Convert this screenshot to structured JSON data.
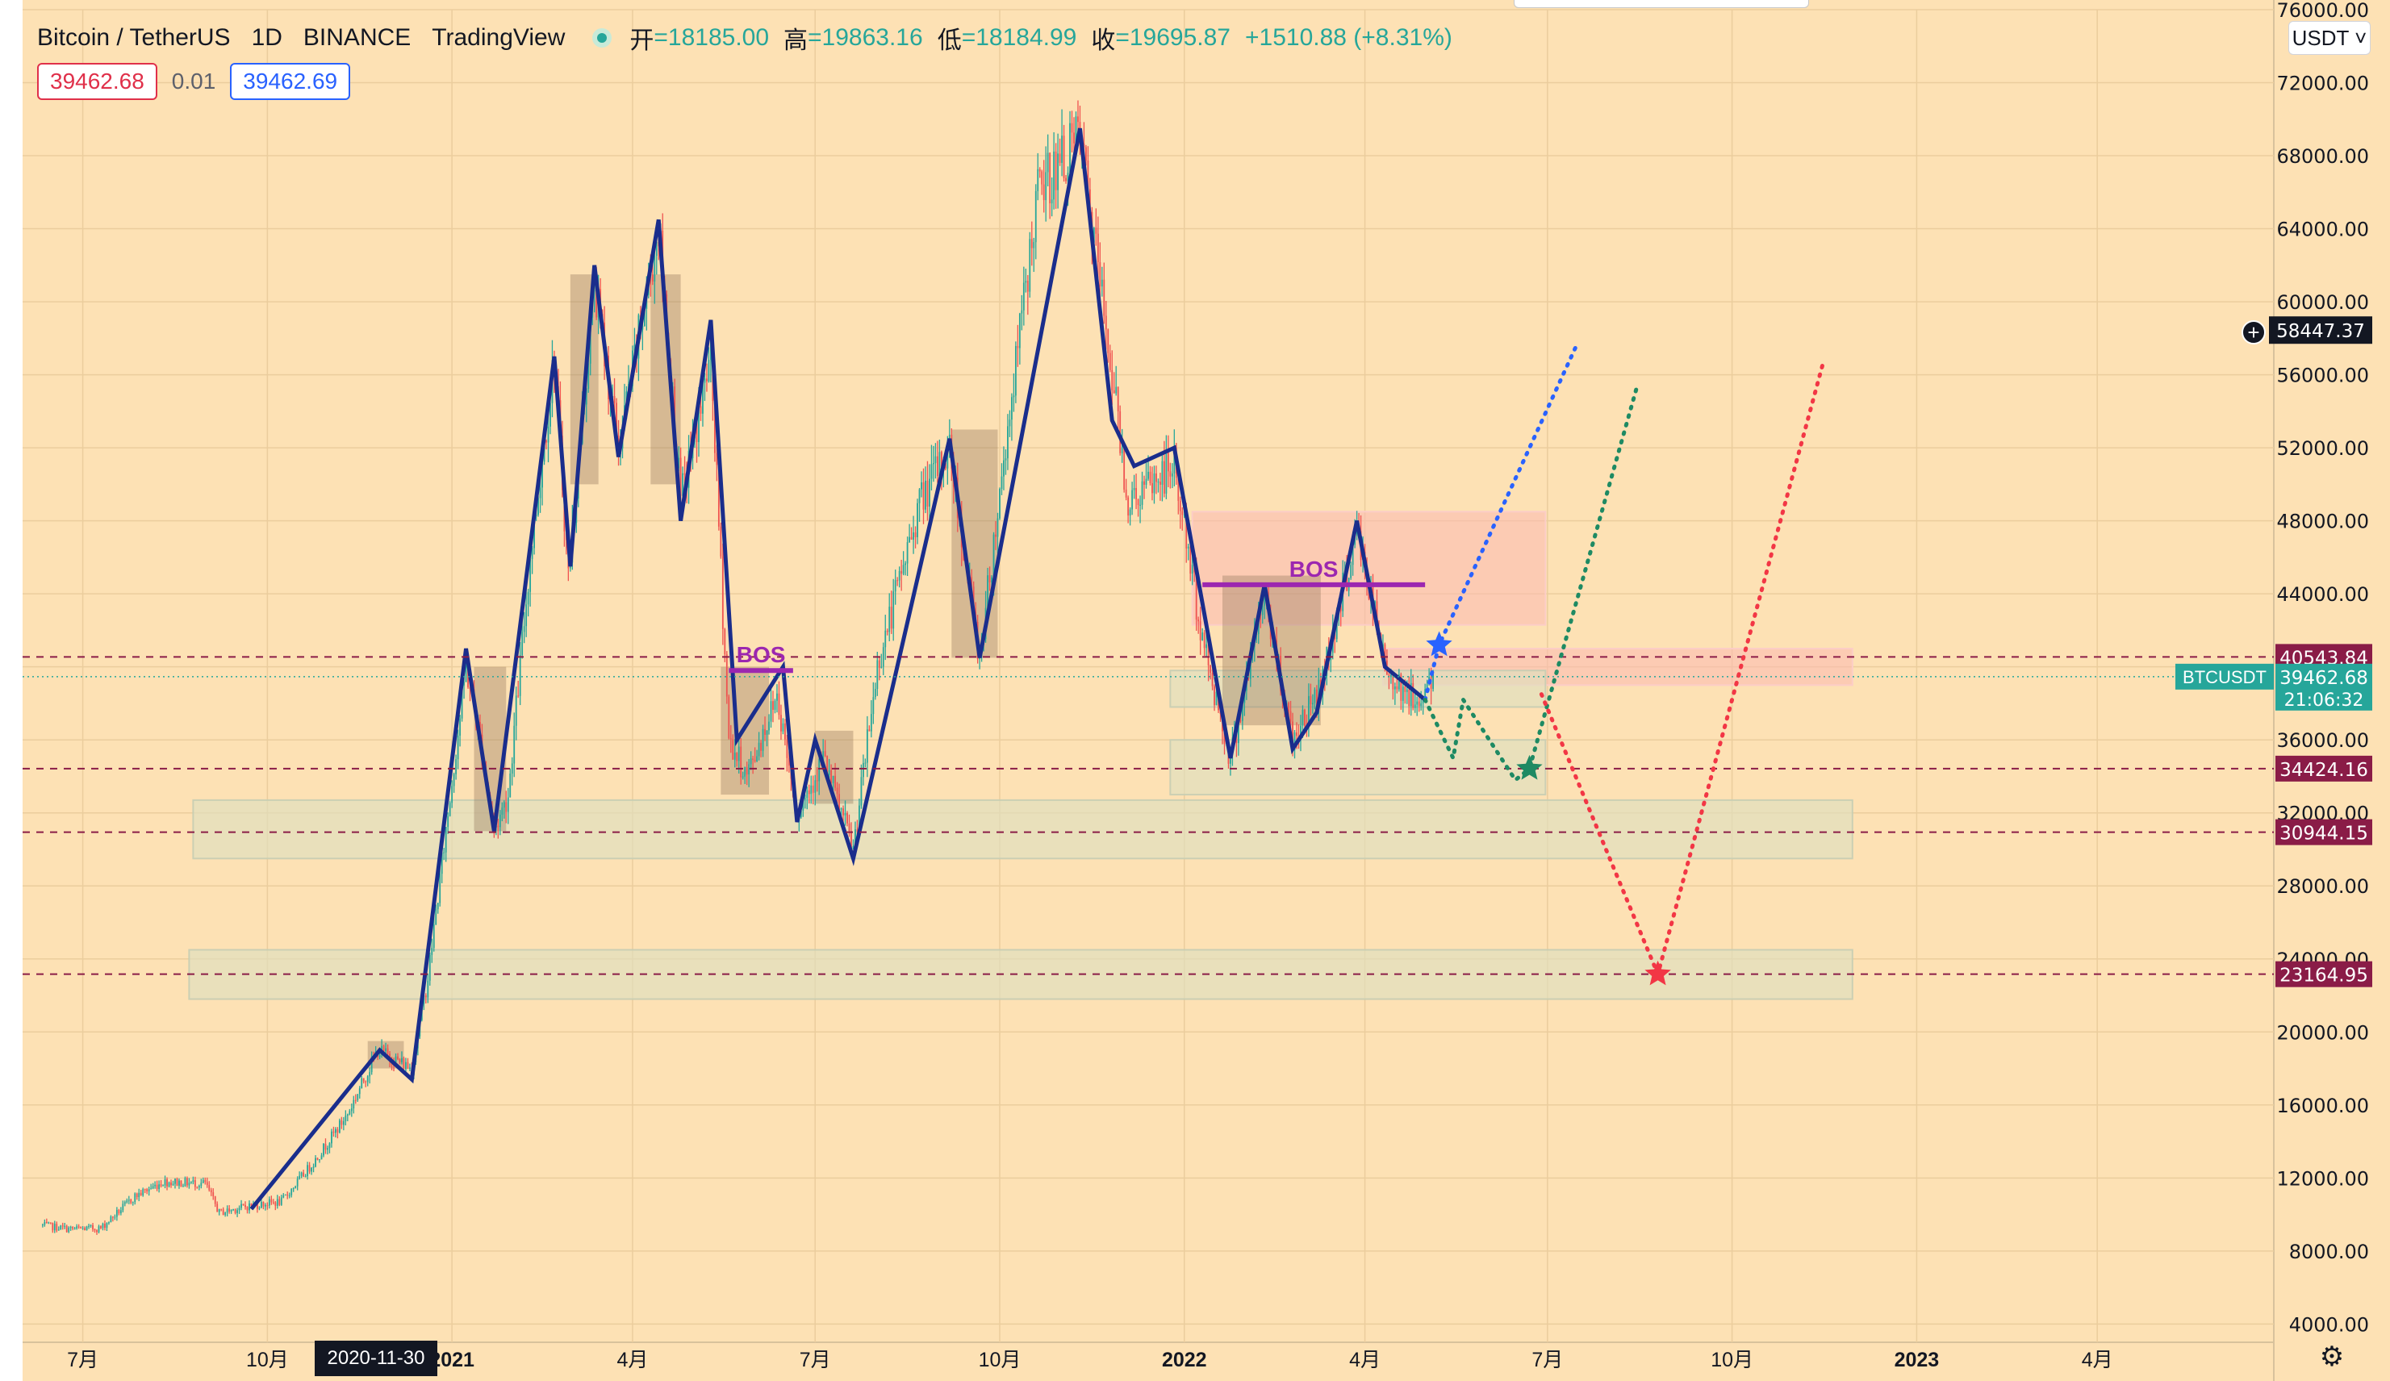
{
  "header": {
    "symbol": "Bitcoin / TetherUS",
    "interval": "1D",
    "exchange": "BINANCE",
    "platform": "TradingView",
    "ohlc": [
      {
        "key": "开",
        "value": "=18185.00"
      },
      {
        "key": "高",
        "value": "=19863.16"
      },
      {
        "key": "低",
        "value": "=18184.99"
      },
      {
        "key": "收",
        "value": "=19695.87"
      }
    ],
    "change": "+1510.88 (+8.31%)"
  },
  "trade": {
    "sell": "39462.68",
    "spread": "0.01",
    "buy": "39462.69"
  },
  "currency_label": "USDT ˅",
  "crosshair_label": "58447.37",
  "hover_date": "2020-11-30",
  "icons": {
    "settings": "gear-icon",
    "add": "plus-circle-icon"
  },
  "colors": {
    "background": "#fde1b4",
    "candle_up": "#26a69a",
    "candle_down": "#ef5350",
    "swing_line": "#1a2d8c",
    "bos": "#9c27b0",
    "level": "#8a1c47",
    "path_blue": "#2962ff",
    "path_green": "#1e8a63",
    "path_red": "#f23645"
  },
  "chart_data": {
    "type": "candlestick",
    "symbol": "BTCUSDT",
    "x_range": [
      "2020-06-11",
      "2023-06-30"
    ],
    "ylim": [
      3000,
      76000
    ],
    "y_ticks": [
      4000,
      8000,
      12000,
      16000,
      20000,
      24000,
      28000,
      32000,
      36000,
      40000,
      44000,
      48000,
      52000,
      56000,
      60000,
      64000,
      68000,
      72000,
      76000
    ],
    "y_tick_labels": [
      "4000.00",
      "8000.00",
      "12000.00",
      "16000.00",
      "20000.00",
      "24000.00",
      "28000.00",
      "32000.00",
      "36000.00",
      "40000.00",
      "44000.00",
      "48000.00",
      "52000.00",
      "56000.00",
      "60000.00",
      "64000.00",
      "68000.00",
      "72000.00",
      "76000.00"
    ],
    "x_ticks": [
      {
        "date": "2020-07-01",
        "label": "7月"
      },
      {
        "date": "2020-10-01",
        "label": "10月"
      },
      {
        "date": "2021-01-01",
        "label": "2021"
      },
      {
        "date": "2021-04-01",
        "label": "4月"
      },
      {
        "date": "2021-07-01",
        "label": "7月"
      },
      {
        "date": "2021-10-01",
        "label": "10月"
      },
      {
        "date": "2022-01-01",
        "label": "2022"
      },
      {
        "date": "2022-04-01",
        "label": "4月"
      },
      {
        "date": "2022-07-01",
        "label": "7月"
      },
      {
        "date": "2022-10-01",
        "label": "10月"
      },
      {
        "date": "2023-01-01",
        "label": "2023"
      },
      {
        "date": "2023-04-01",
        "label": "4月"
      }
    ],
    "price_path": [
      [
        "2020-06-11",
        9400
      ],
      [
        "2020-06-25",
        9200
      ],
      [
        "2020-07-10",
        9250
      ],
      [
        "2020-07-27",
        11000
      ],
      [
        "2020-08-10",
        11800
      ],
      [
        "2020-08-31",
        11700
      ],
      [
        "2020-09-07",
        10100
      ],
      [
        "2020-09-23",
        10500
      ],
      [
        "2020-10-08",
        10700
      ],
      [
        "2020-10-25",
        13000
      ],
      [
        "2020-11-10",
        15500
      ],
      [
        "2020-11-25",
        19000
      ],
      [
        "2020-12-12",
        18000
      ],
      [
        "2020-12-20",
        23000
      ],
      [
        "2021-01-08",
        40000
      ],
      [
        "2021-01-15",
        36000
      ],
      [
        "2021-01-22",
        31000
      ],
      [
        "2021-01-29",
        33000
      ],
      [
        "2021-02-09",
        46000
      ],
      [
        "2021-02-21",
        57000
      ],
      [
        "2021-02-28",
        45000
      ],
      [
        "2021-03-13",
        61000
      ],
      [
        "2021-03-25",
        52000
      ],
      [
        "2021-04-14",
        64000
      ],
      [
        "2021-04-25",
        49000
      ],
      [
        "2021-05-10",
        57000
      ],
      [
        "2021-05-19",
        36000
      ],
      [
        "2021-05-28",
        34000
      ],
      [
        "2021-06-12",
        38500
      ],
      [
        "2021-06-22",
        32000
      ],
      [
        "2021-07-05",
        35000
      ],
      [
        "2021-07-20",
        30000
      ],
      [
        "2021-08-01",
        40000
      ],
      [
        "2021-08-22",
        49000
      ],
      [
        "2021-09-06",
        52000
      ],
      [
        "2021-09-21",
        40500
      ],
      [
        "2021-10-06",
        54000
      ],
      [
        "2021-10-20",
        66000
      ],
      [
        "2021-11-10",
        69000
      ],
      [
        "2021-11-25",
        57000
      ],
      [
        "2021-12-04",
        49000
      ],
      [
        "2021-12-27",
        51000
      ],
      [
        "2022-01-10",
        41500
      ],
      [
        "2022-01-24",
        35000
      ],
      [
        "2022-02-10",
        44000
      ],
      [
        "2022-02-24",
        36000
      ],
      [
        "2022-03-10",
        39000
      ],
      [
        "2022-03-28",
        47500
      ],
      [
        "2022-04-11",
        40000
      ],
      [
        "2022-04-26",
        38000
      ],
      [
        "2022-05-05",
        39462
      ]
    ],
    "swing_zigzag": [
      [
        "2020-09-23",
        10300
      ],
      [
        "2020-11-26",
        19000
      ],
      [
        "2020-12-12",
        17400
      ],
      [
        "2021-01-08",
        41000
      ],
      [
        "2021-01-22",
        31000
      ],
      [
        "2021-02-21",
        57000
      ],
      [
        "2021-03-01",
        45500
      ],
      [
        "2021-03-13",
        62000
      ],
      [
        "2021-03-25",
        51500
      ],
      [
        "2021-04-14",
        64500
      ],
      [
        "2021-04-25",
        48000
      ],
      [
        "2021-05-10",
        59000
      ],
      [
        "2021-05-23",
        36000
      ],
      [
        "2021-06-15",
        40000
      ],
      [
        "2021-06-22",
        31500
      ],
      [
        "2021-07-01",
        36000
      ],
      [
        "2021-07-20",
        29500
      ],
      [
        "2021-09-06",
        52500
      ],
      [
        "2021-09-21",
        40500
      ],
      [
        "2021-11-10",
        69500
      ],
      [
        "2021-11-26",
        53500
      ],
      [
        "2021-12-07",
        51000
      ],
      [
        "2021-12-27",
        52000
      ],
      [
        "2022-01-24",
        35000
      ],
      [
        "2022-02-10",
        44500
      ],
      [
        "2022-02-24",
        35500
      ],
      [
        "2022-03-08",
        37500
      ],
      [
        "2022-03-28",
        48000
      ],
      [
        "2022-04-11",
        40000
      ],
      [
        "2022-05-01",
        38200
      ]
    ],
    "zones": [
      {
        "from": "2020-08-25",
        "to": "2022-11-30",
        "low": 29500,
        "high": 32700,
        "kind": "demand"
      },
      {
        "from": "2020-08-23",
        "to": "2022-11-30",
        "low": 21800,
        "high": 24500,
        "kind": "demand"
      },
      {
        "from": "2022-01-05",
        "to": "2022-06-30",
        "low": 42300,
        "high": 48500,
        "kind": "supply"
      },
      {
        "from": "2022-04-10",
        "to": "2022-11-30",
        "low": 39000,
        "high": 41000,
        "kind": "supply"
      },
      {
        "from": "2021-12-25",
        "to": "2022-06-30",
        "low": 37800,
        "high": 39800,
        "kind": "demand"
      },
      {
        "from": "2021-12-25",
        "to": "2022-06-30",
        "low": 33000,
        "high": 36000,
        "kind": "demand"
      }
    ],
    "consolidation_boxes": [
      {
        "from": "2020-11-20",
        "to": "2020-12-08",
        "low": 18000,
        "high": 19500
      },
      {
        "from": "2021-01-12",
        "to": "2021-01-28",
        "low": 31000,
        "high": 40000
      },
      {
        "from": "2021-03-01",
        "to": "2021-03-15",
        "low": 50000,
        "high": 61500
      },
      {
        "from": "2021-04-10",
        "to": "2021-04-25",
        "low": 50000,
        "high": 61500
      },
      {
        "from": "2021-05-15",
        "to": "2021-06-08",
        "low": 33000,
        "high": 40000
      },
      {
        "from": "2021-07-01",
        "to": "2021-07-20",
        "low": 32500,
        "high": 36500
      },
      {
        "from": "2021-09-07",
        "to": "2021-09-30",
        "low": 40500,
        "high": 53000
      },
      {
        "from": "2022-01-20",
        "to": "2022-03-10",
        "low": 36800,
        "high": 45000
      }
    ],
    "bos": [
      {
        "label": "BOS",
        "from": "2021-05-19",
        "to": "2021-06-20",
        "price": 39800
      },
      {
        "label": "BOS",
        "from": "2022-01-10",
        "to": "2022-05-01",
        "price": 44500
      }
    ],
    "levels": [
      {
        "price": 40543.84,
        "label": "40543.84"
      },
      {
        "price": 34424.16,
        "label": "34424.16"
      },
      {
        "price": 30944.15,
        "label": "30944.15"
      },
      {
        "price": 23164.95,
        "label": "23164.95"
      }
    ],
    "last_price": {
      "symbol": "BTCUSDT",
      "price": 39462.68,
      "label": "39462.68",
      "countdown": "21:06:32"
    },
    "projections": [
      {
        "color": "blue",
        "points": [
          [
            "2022-05-01",
            38200
          ],
          [
            "2022-05-08",
            41200
          ],
          [
            "2022-07-15",
            57500
          ]
        ],
        "target_star": [
          "2022-05-08",
          41200
        ]
      },
      {
        "color": "green",
        "points": [
          [
            "2022-05-01",
            38200
          ],
          [
            "2022-05-15",
            35000
          ],
          [
            "2022-05-20",
            38200
          ],
          [
            "2022-06-15",
            33800
          ],
          [
            "2022-06-22",
            34424
          ],
          [
            "2022-08-15",
            55500
          ]
        ],
        "target_star": [
          "2022-06-22",
          34424
        ]
      },
      {
        "color": "red",
        "points": [
          [
            "2022-06-28",
            38500
          ],
          [
            "2022-08-25",
            23165
          ],
          [
            "2022-11-15",
            56500
          ]
        ],
        "target_star": [
          "2022-08-25",
          23165
        ]
      }
    ]
  }
}
